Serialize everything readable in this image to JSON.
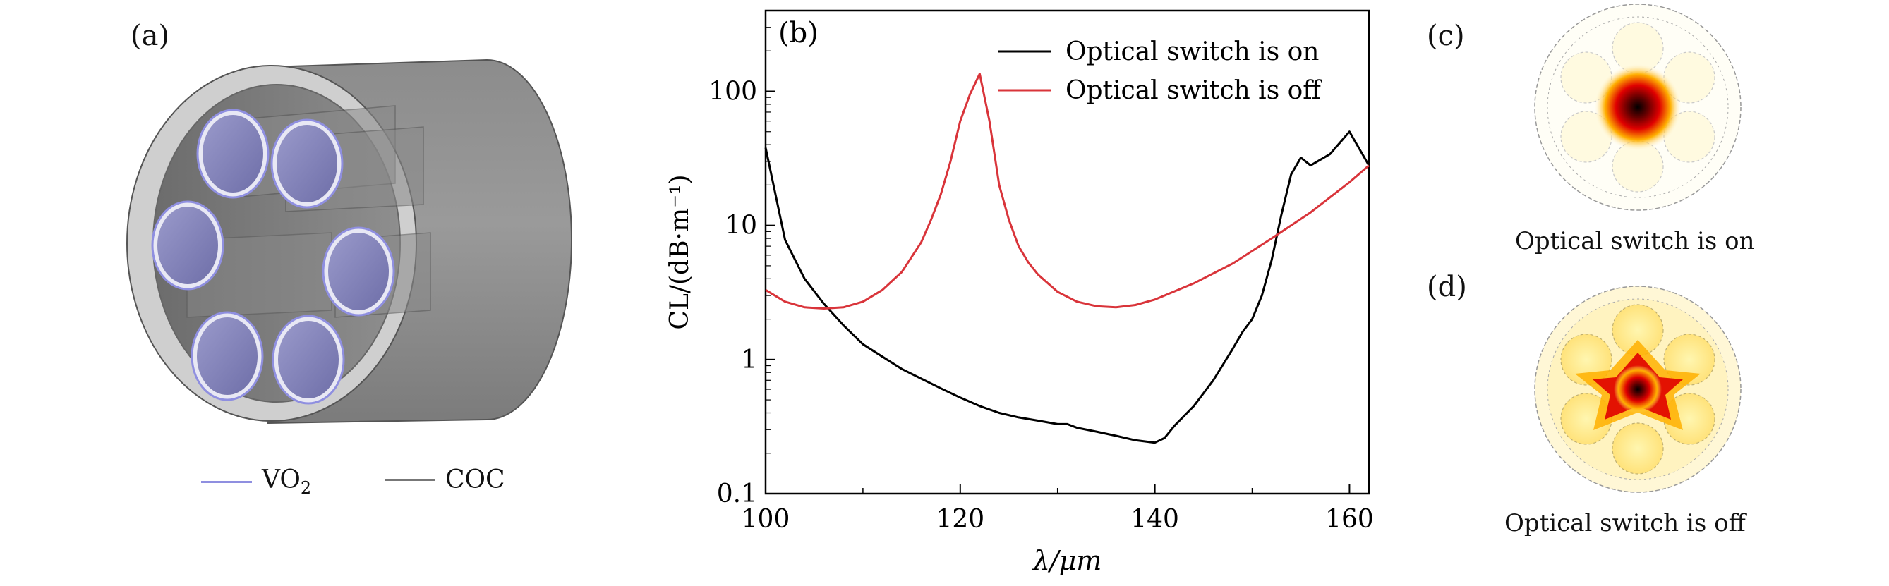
{
  "panel_a": {
    "label": "(a)",
    "legend": [
      {
        "label_main": "VO",
        "label_sub": "2",
        "color": "#8f8fe0"
      },
      {
        "label_main": "COC",
        "label_sub": "",
        "color": "#777777"
      }
    ]
  },
  "panel_b": {
    "label": "(b)"
  },
  "panel_c": {
    "label": "(c)",
    "caption": "Optical switch is on"
  },
  "panel_d": {
    "label": "(d)",
    "caption": "Optical switch is off"
  },
  "chart_data": {
    "type": "line",
    "title": "",
    "xlabel": "λ/μm",
    "ylabel": "CL/(dB·m⁻¹)",
    "xlim": [
      100,
      162
    ],
    "ylim": [
      0.1,
      400
    ],
    "yscale": "log",
    "xticks": [
      100,
      120,
      140,
      160
    ],
    "xtick_labels": [
      "100",
      "120",
      "140",
      "160"
    ],
    "yticks": [
      0.1,
      1,
      10,
      100
    ],
    "ytick_labels": [
      "0.1",
      "1",
      "10",
      "100"
    ],
    "grid": false,
    "legend_position": "top-right",
    "series": [
      {
        "name": "Optical switch is on",
        "color": "#000000",
        "x": [
          100,
          102,
          104,
          106,
          108,
          110,
          112,
          114,
          116,
          118,
          120,
          122,
          124,
          126,
          128,
          130,
          131,
          132,
          134,
          136,
          138,
          140,
          141,
          142,
          144,
          146,
          148,
          149,
          150,
          151,
          152,
          153,
          154,
          155,
          156,
          158,
          160,
          162
        ],
        "y": [
          38,
          7.8,
          4.0,
          2.6,
          1.8,
          1.3,
          1.05,
          0.85,
          0.72,
          0.61,
          0.52,
          0.45,
          0.4,
          0.37,
          0.35,
          0.33,
          0.33,
          0.31,
          0.29,
          0.27,
          0.25,
          0.24,
          0.26,
          0.32,
          0.45,
          0.7,
          1.2,
          1.6,
          2.0,
          3.0,
          5.5,
          12,
          24,
          32,
          28,
          34,
          50,
          28
        ]
      },
      {
        "name": "Optical switch is off",
        "color": "#d9343a",
        "x": [
          100,
          102,
          104,
          106,
          108,
          110,
          112,
          114,
          116,
          117,
          118,
          119,
          120,
          121,
          122,
          123,
          124,
          125,
          126,
          127,
          128,
          130,
          132,
          134,
          136,
          138,
          140,
          144,
          148,
          152,
          156,
          160,
          162
        ],
        "y": [
          3.3,
          2.7,
          2.45,
          2.4,
          2.45,
          2.7,
          3.3,
          4.5,
          7.5,
          11,
          17,
          30,
          60,
          95,
          135,
          60,
          20,
          11,
          7,
          5.3,
          4.3,
          3.2,
          2.7,
          2.5,
          2.45,
          2.55,
          2.8,
          3.7,
          5.2,
          8.0,
          12.5,
          21,
          28
        ]
      }
    ]
  }
}
